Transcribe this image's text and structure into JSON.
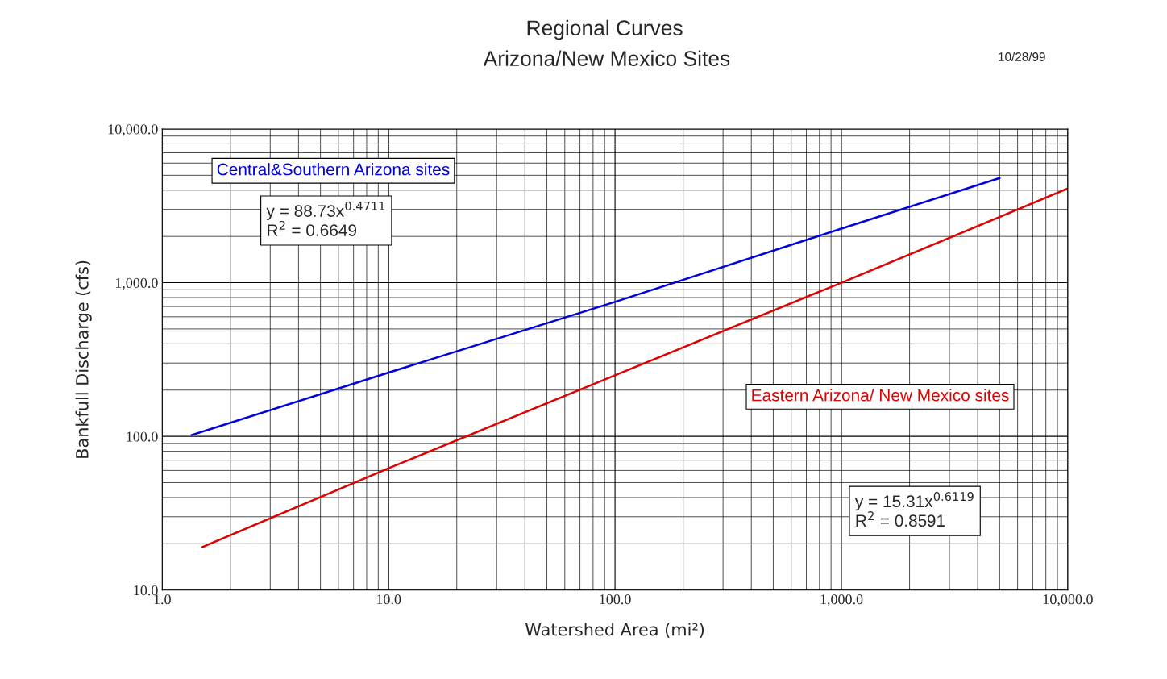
{
  "chart_data": {
    "type": "line",
    "title": "Regional Curves",
    "subtitle": "Arizona/New Mexico Sites",
    "xlabel": "Watershed Area (mi²)",
    "ylabel": "Bankfull Discharge (cfs)",
    "log": "xy",
    "grid": true,
    "legend": false,
    "marker": "none",
    "line_style": "solid",
    "xlim": [
      1,
      10000
    ],
    "ylim": [
      10,
      10000
    ],
    "xticks": [
      {
        "value": 1,
        "label": "1.0"
      },
      {
        "value": 10,
        "label": "10.0"
      },
      {
        "value": 100,
        "label": "100.0"
      },
      {
        "value": 1000,
        "label": "1,000.0"
      },
      {
        "value": 10000,
        "label": "10,000.0"
      }
    ],
    "yticks": [
      {
        "value": 10,
        "label": "10.0"
      },
      {
        "value": 100,
        "label": "100.0"
      },
      {
        "value": 1000,
        "label": "1,000.0"
      },
      {
        "value": 10000,
        "label": "10,000.0"
      }
    ],
    "series": [
      {
        "name": "Central&Southern Arizona sites",
        "color": "#0000e0",
        "x": [
          1.35,
          10,
          100,
          1000,
          5000
        ],
        "values": [
          102,
          260,
          750,
          2250,
          4800
        ]
      },
      {
        "name": "Eastern Arizona/ New Mexico sites",
        "color": "#e00000",
        "x": [
          1.5,
          10,
          100,
          1000,
          10000
        ],
        "values": [
          19,
          62,
          250,
          1000,
          4100
        ]
      }
    ],
    "annotations": [
      "y = 88.73x$^{0.4711}$\nR$^{2}$ = 0.6649",
      "y = 15.31x$^{0.6119}$\nR$^{2}$ = 0.8591",
      "10/28/99"
    ]
  }
}
